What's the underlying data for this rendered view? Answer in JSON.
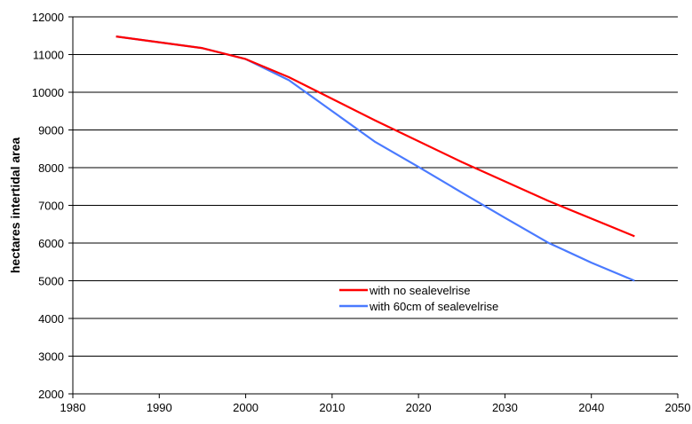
{
  "chart_data": {
    "type": "line",
    "title": "",
    "xlabel": "",
    "ylabel": "hectares intertidal area",
    "xlim": [
      1980,
      2050
    ],
    "ylim": [
      2000,
      12000
    ],
    "x_ticks": [
      1980,
      1990,
      2000,
      2010,
      2020,
      2030,
      2040,
      2050
    ],
    "y_ticks": [
      2000,
      3000,
      4000,
      5000,
      6000,
      7000,
      8000,
      9000,
      10000,
      11000,
      12000
    ],
    "grid": "horizontal",
    "legend_position": "center-right",
    "series": [
      {
        "name": "with no sealevelrise",
        "color": "#ff0000",
        "x": [
          1985,
          1995,
          2000,
          2005,
          2015,
          2025,
          2035,
          2045
        ],
        "y": [
          11480,
          11170,
          10880,
          10400,
          9250,
          8150,
          7120,
          6180
        ]
      },
      {
        "name": "with 60cm of sealevelrise",
        "color": "#4a7aff",
        "x": [
          1985,
          1995,
          2000,
          2005,
          2010,
          2015,
          2020,
          2025,
          2030,
          2035,
          2040,
          2045
        ],
        "y": [
          11480,
          11170,
          10880,
          10320,
          9500,
          8680,
          8020,
          7340,
          6670,
          6010,
          5480,
          5000
        ]
      }
    ]
  }
}
